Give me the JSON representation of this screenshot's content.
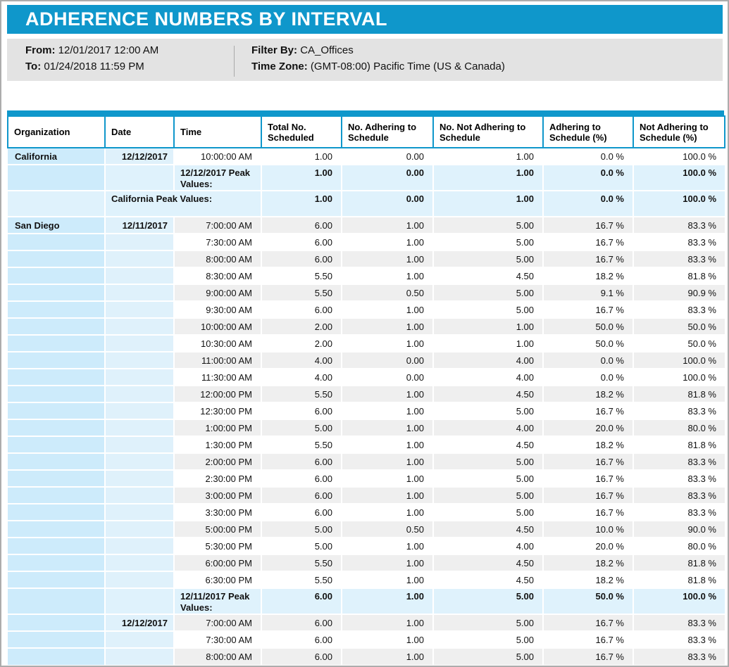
{
  "header": {
    "title": "ADHERENCE NUMBERS BY INTERVAL"
  },
  "filters": {
    "from_label": "From:",
    "from_value": "12/01/2017 12:00 AM",
    "to_label": "To:",
    "to_value": "01/24/2018 11:59 PM",
    "filter_by_label": "Filter By:",
    "filter_by_value": "CA_Offices",
    "time_zone_label": "Time Zone:",
    "time_zone_value": "(GMT-08:00) Pacific Time (US & Canada)"
  },
  "table": {
    "columns": [
      "Organization",
      "Date",
      "Time",
      "Total No. Scheduled",
      "No. Adhering to Schedule",
      "No. Not Adhering to Schedule",
      "Adhering to Schedule (%)",
      "Not Adhering to Schedule (%)"
    ],
    "rows": [
      {
        "type": "data",
        "org": "California",
        "date": "12/12/2017",
        "time": "10:00:00 AM",
        "values": [
          "1.00",
          "0.00",
          "1.00",
          "0.0 %",
          "100.0 %"
        ]
      },
      {
        "type": "peakDate",
        "label": "12/12/2017 Peak Values:",
        "values": [
          "1.00",
          "0.00",
          "1.00",
          "0.0 %",
          "100.0 %"
        ]
      },
      {
        "type": "peakOrg",
        "label": "California Peak Values:",
        "values": [
          "1.00",
          "0.00",
          "1.00",
          "0.0 %",
          "100.0 %"
        ]
      },
      {
        "type": "data",
        "org": "San Diego",
        "date": "12/11/2017",
        "time": "7:00:00 AM",
        "values": [
          "6.00",
          "1.00",
          "5.00",
          "16.7 %",
          "83.3 %"
        ]
      },
      {
        "type": "data",
        "org": "",
        "date": "",
        "time": "7:30:00 AM",
        "values": [
          "6.00",
          "1.00",
          "5.00",
          "16.7 %",
          "83.3 %"
        ]
      },
      {
        "type": "data",
        "org": "",
        "date": "",
        "time": "8:00:00 AM",
        "values": [
          "6.00",
          "1.00",
          "5.00",
          "16.7 %",
          "83.3 %"
        ]
      },
      {
        "type": "data",
        "org": "",
        "date": "",
        "time": "8:30:00 AM",
        "values": [
          "5.50",
          "1.00",
          "4.50",
          "18.2 %",
          "81.8 %"
        ]
      },
      {
        "type": "data",
        "org": "",
        "date": "",
        "time": "9:00:00 AM",
        "values": [
          "5.50",
          "0.50",
          "5.00",
          "9.1 %",
          "90.9 %"
        ]
      },
      {
        "type": "data",
        "org": "",
        "date": "",
        "time": "9:30:00 AM",
        "values": [
          "6.00",
          "1.00",
          "5.00",
          "16.7 %",
          "83.3 %"
        ]
      },
      {
        "type": "data",
        "org": "",
        "date": "",
        "time": "10:00:00 AM",
        "values": [
          "2.00",
          "1.00",
          "1.00",
          "50.0 %",
          "50.0 %"
        ]
      },
      {
        "type": "data",
        "org": "",
        "date": "",
        "time": "10:30:00 AM",
        "values": [
          "2.00",
          "1.00",
          "1.00",
          "50.0 %",
          "50.0 %"
        ]
      },
      {
        "type": "data",
        "org": "",
        "date": "",
        "time": "11:00:00 AM",
        "values": [
          "4.00",
          "0.00",
          "4.00",
          "0.0 %",
          "100.0 %"
        ]
      },
      {
        "type": "data",
        "org": "",
        "date": "",
        "time": "11:30:00 AM",
        "values": [
          "4.00",
          "0.00",
          "4.00",
          "0.0 %",
          "100.0 %"
        ]
      },
      {
        "type": "data",
        "org": "",
        "date": "",
        "time": "12:00:00 PM",
        "values": [
          "5.50",
          "1.00",
          "4.50",
          "18.2 %",
          "81.8 %"
        ]
      },
      {
        "type": "data",
        "org": "",
        "date": "",
        "time": "12:30:00 PM",
        "values": [
          "6.00",
          "1.00",
          "5.00",
          "16.7 %",
          "83.3 %"
        ]
      },
      {
        "type": "data",
        "org": "",
        "date": "",
        "time": "1:00:00 PM",
        "values": [
          "5.00",
          "1.00",
          "4.00",
          "20.0 %",
          "80.0 %"
        ]
      },
      {
        "type": "data",
        "org": "",
        "date": "",
        "time": "1:30:00 PM",
        "values": [
          "5.50",
          "1.00",
          "4.50",
          "18.2 %",
          "81.8 %"
        ]
      },
      {
        "type": "data",
        "org": "",
        "date": "",
        "time": "2:00:00 PM",
        "values": [
          "6.00",
          "1.00",
          "5.00",
          "16.7 %",
          "83.3 %"
        ]
      },
      {
        "type": "data",
        "org": "",
        "date": "",
        "time": "2:30:00 PM",
        "values": [
          "6.00",
          "1.00",
          "5.00",
          "16.7 %",
          "83.3 %"
        ]
      },
      {
        "type": "data",
        "org": "",
        "date": "",
        "time": "3:00:00 PM",
        "values": [
          "6.00",
          "1.00",
          "5.00",
          "16.7 %",
          "83.3 %"
        ]
      },
      {
        "type": "data",
        "org": "",
        "date": "",
        "time": "3:30:00 PM",
        "values": [
          "6.00",
          "1.00",
          "5.00",
          "16.7 %",
          "83.3 %"
        ]
      },
      {
        "type": "data",
        "org": "",
        "date": "",
        "time": "5:00:00 PM",
        "values": [
          "5.00",
          "0.50",
          "4.50",
          "10.0 %",
          "90.0 %"
        ]
      },
      {
        "type": "data",
        "org": "",
        "date": "",
        "time": "5:30:00 PM",
        "values": [
          "5.00",
          "1.00",
          "4.00",
          "20.0 %",
          "80.0 %"
        ]
      },
      {
        "type": "data",
        "org": "",
        "date": "",
        "time": "6:00:00 PM",
        "values": [
          "5.50",
          "1.00",
          "4.50",
          "18.2 %",
          "81.8 %"
        ]
      },
      {
        "type": "data",
        "org": "",
        "date": "",
        "time": "6:30:00 PM",
        "values": [
          "5.50",
          "1.00",
          "4.50",
          "18.2 %",
          "81.8 %"
        ]
      },
      {
        "type": "peakDate",
        "label": "12/11/2017 Peak Values:",
        "values": [
          "6.00",
          "1.00",
          "5.00",
          "50.0 %",
          "100.0 %"
        ]
      },
      {
        "type": "data",
        "org": "",
        "date": "12/12/2017",
        "time": "7:00:00 AM",
        "values": [
          "6.00",
          "1.00",
          "5.00",
          "16.7 %",
          "83.3 %"
        ]
      },
      {
        "type": "data",
        "org": "",
        "date": "",
        "time": "7:30:00 AM",
        "values": [
          "6.00",
          "1.00",
          "5.00",
          "16.7 %",
          "83.3 %"
        ]
      },
      {
        "type": "data",
        "org": "",
        "date": "",
        "time": "8:00:00 AM",
        "values": [
          "6.00",
          "1.00",
          "5.00",
          "16.7 %",
          "83.3 %"
        ]
      }
    ]
  },
  "colors": {
    "accent": "#0F97CB",
    "filter-bg": "#E3E3E3",
    "org-col": "#CDEBFB",
    "date-col": "#DFF1FB",
    "peak-row": "#DFF2FC",
    "row-alt": "#EFEFEF",
    "page-border": "#ACACAC"
  }
}
